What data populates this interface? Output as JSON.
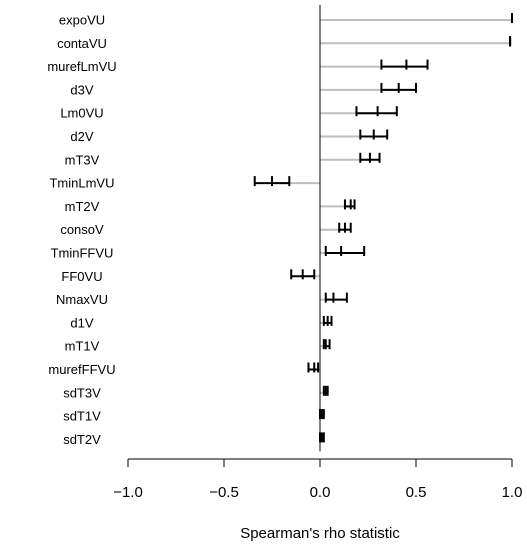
{
  "chart_data": {
    "type": "errorbar",
    "xlabel": "Spearman's rho statistic",
    "xlim": [
      -1.0,
      1.0
    ],
    "x_ticks": [
      -1.0,
      -0.5,
      0.0,
      0.5,
      1.0
    ],
    "x_tick_labels": [
      "−1.0",
      "−0.5",
      "0.0",
      "0.5",
      "1.0"
    ],
    "reference_line": 0.0,
    "items": [
      {
        "label": "expoVU",
        "estimate": 1.0,
        "lower": 1.0,
        "upper": 1.0
      },
      {
        "label": "contaVU",
        "estimate": 0.99,
        "lower": 0.99,
        "upper": 0.99
      },
      {
        "label": "murefLmVU",
        "estimate": 0.45,
        "lower": 0.32,
        "upper": 0.56
      },
      {
        "label": "d3V",
        "estimate": 0.41,
        "lower": 0.32,
        "upper": 0.5
      },
      {
        "label": "Lm0VU",
        "estimate": 0.3,
        "lower": 0.19,
        "upper": 0.4
      },
      {
        "label": "d2V",
        "estimate": 0.28,
        "lower": 0.21,
        "upper": 0.35
      },
      {
        "label": "mT3V",
        "estimate": 0.26,
        "lower": 0.21,
        "upper": 0.31
      },
      {
        "label": "TminLmVU",
        "estimate": -0.25,
        "lower": -0.34,
        "upper": -0.16
      },
      {
        "label": "mT2V",
        "estimate": 0.16,
        "lower": 0.13,
        "upper": 0.18
      },
      {
        "label": "consoV",
        "estimate": 0.13,
        "lower": 0.1,
        "upper": 0.16
      },
      {
        "label": "TminFFVU",
        "estimate": 0.11,
        "lower": 0.03,
        "upper": 0.23
      },
      {
        "label": "FF0VU",
        "estimate": -0.09,
        "lower": -0.15,
        "upper": -0.03
      },
      {
        "label": "NmaxVU",
        "estimate": 0.07,
        "lower": 0.03,
        "upper": 0.14
      },
      {
        "label": "d1V",
        "estimate": 0.04,
        "lower": 0.02,
        "upper": 0.06
      },
      {
        "label": "mT1V",
        "estimate": 0.03,
        "lower": 0.02,
        "upper": 0.05
      },
      {
        "label": "murefFFVU",
        "estimate": -0.03,
        "lower": -0.06,
        "upper": -0.01
      },
      {
        "label": "sdT3V",
        "estimate": 0.03,
        "lower": 0.02,
        "upper": 0.04
      },
      {
        "label": "sdT1V",
        "estimate": 0.01,
        "lower": 0.0,
        "upper": 0.02
      },
      {
        "label": "sdT2V",
        "estimate": 0.01,
        "lower": 0.0,
        "upper": 0.02
      }
    ],
    "colors": {
      "connector": "#bebebe",
      "errorbar": "#000000",
      "axis": "#000000"
    }
  }
}
